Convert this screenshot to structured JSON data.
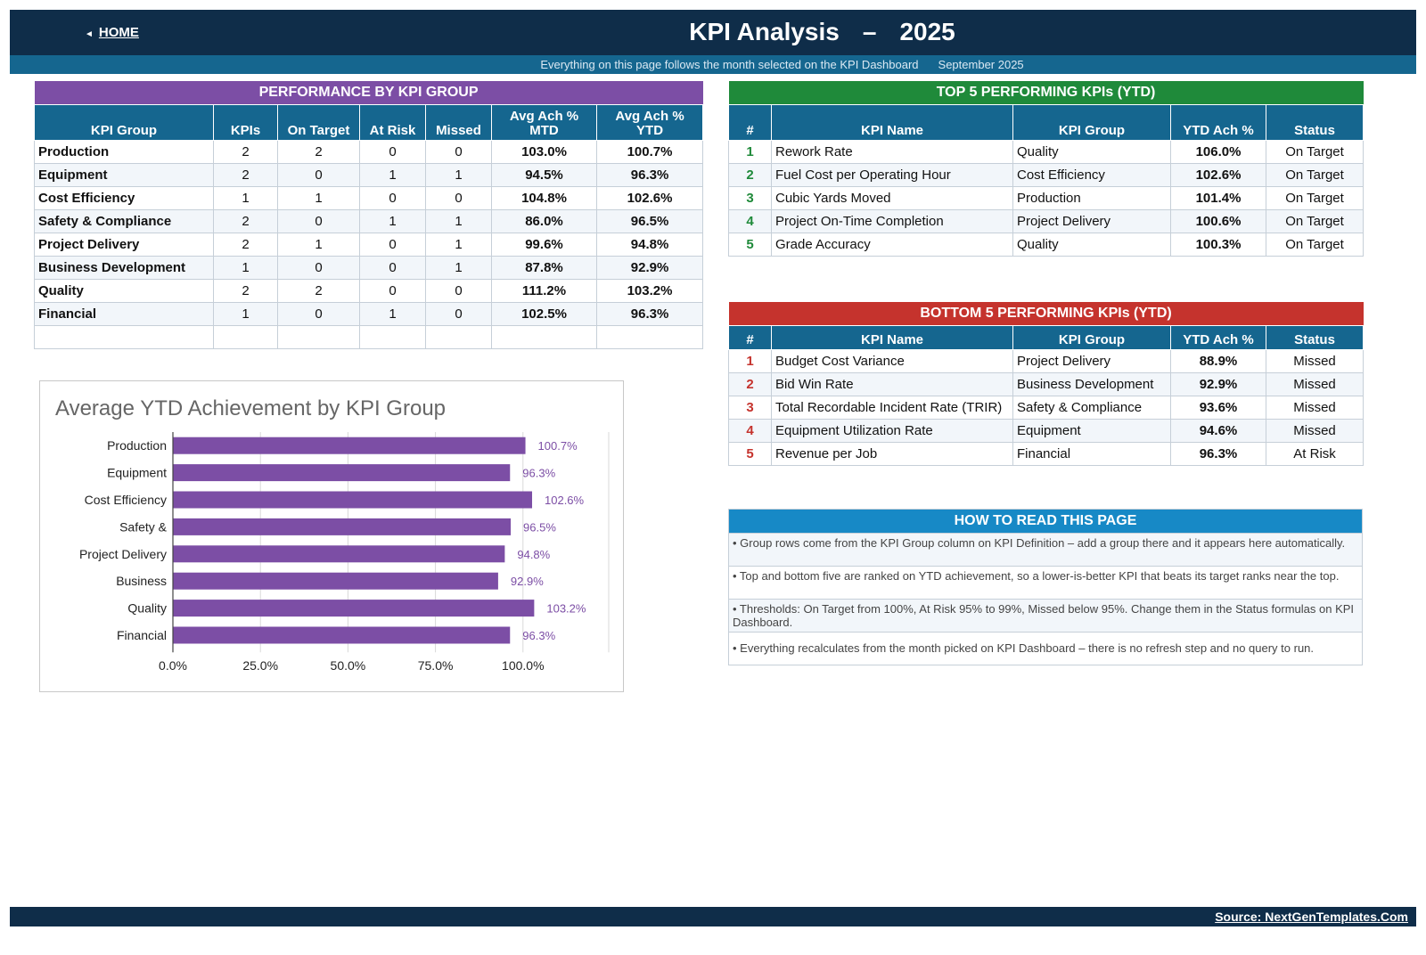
{
  "header": {
    "home_label": "HOME",
    "title": "KPI Analysis",
    "dash": "–",
    "year": "2025",
    "subtitle": "Everything on this page follows the month selected on the KPI Dashboard",
    "month": "September 2025"
  },
  "performance": {
    "title": "PERFORMANCE BY KPI GROUP",
    "columns": [
      "KPI Group",
      "KPIs",
      "On Target",
      "At Risk",
      "Missed",
      "Avg Ach %\nMTD",
      "Avg Ach %\nYTD"
    ],
    "rows": [
      [
        "Production",
        "2",
        "2",
        "0",
        "0",
        "103.0%",
        "100.7%"
      ],
      [
        "Equipment",
        "2",
        "0",
        "1",
        "1",
        "94.5%",
        "96.3%"
      ],
      [
        "Cost Efficiency",
        "1",
        "1",
        "0",
        "0",
        "104.8%",
        "102.6%"
      ],
      [
        "Safety & Compliance",
        "2",
        "0",
        "1",
        "1",
        "86.0%",
        "96.5%"
      ],
      [
        "Project Delivery",
        "2",
        "1",
        "0",
        "1",
        "99.6%",
        "94.8%"
      ],
      [
        "Business Development",
        "1",
        "0",
        "0",
        "1",
        "87.8%",
        "92.9%"
      ],
      [
        "Quality",
        "2",
        "2",
        "0",
        "0",
        "111.2%",
        "103.2%"
      ],
      [
        "Financial",
        "1",
        "0",
        "1",
        "0",
        "102.5%",
        "96.3%"
      ],
      [
        "",
        "",
        "",
        "",
        "",
        "",
        ""
      ]
    ]
  },
  "top5": {
    "title": "TOP 5 PERFORMING KPIs  (YTD)",
    "columns": [
      "#",
      "KPI Name",
      "KPI Group",
      "YTD Ach %",
      "Status"
    ],
    "rows": [
      [
        "1",
        "Rework Rate",
        "Quality",
        "106.0%",
        "On Target"
      ],
      [
        "2",
        "Fuel Cost per Operating Hour",
        "Cost Efficiency",
        "102.6%",
        "On Target"
      ],
      [
        "3",
        "Cubic Yards Moved",
        "Production",
        "101.4%",
        "On Target"
      ],
      [
        "4",
        "Project On-Time Completion",
        "Project Delivery",
        "100.6%",
        "On Target"
      ],
      [
        "5",
        "Grade Accuracy",
        "Quality",
        "100.3%",
        "On Target"
      ]
    ]
  },
  "bottom5": {
    "title": "BOTTOM 5 PERFORMING KPIs  (YTD)",
    "columns": [
      "#",
      "KPI Name",
      "KPI Group",
      "YTD Ach %",
      "Status"
    ],
    "rows": [
      [
        "1",
        "Budget Cost Variance",
        "Project Delivery",
        "88.9%",
        "Missed"
      ],
      [
        "2",
        "Bid Win Rate",
        "Business Development",
        "92.9%",
        "Missed"
      ],
      [
        "3",
        "Total Recordable Incident Rate (TRIR)",
        "Safety & Compliance",
        "93.6%",
        "Missed"
      ],
      [
        "4",
        "Equipment Utilization Rate",
        "Equipment",
        "94.6%",
        "Missed"
      ],
      [
        "5",
        "Revenue per Job",
        "Financial",
        "96.3%",
        "At Risk"
      ]
    ]
  },
  "howto": {
    "title": "HOW TO READ THIS PAGE",
    "tips": [
      "•  Group rows come from the KPI Group column on KPI Definition – add a group there and it appears here automatically.",
      "•  Top and bottom five are ranked on YTD achievement, so a lower-is-better KPI that beats its target ranks near the top.",
      "•  Thresholds: On Target from 100%, At Risk 95% to 99%, Missed below 95%. Change them in the Status formulas on KPI Dashboard.",
      "•  Everything recalculates from the month picked on KPI Dashboard – there is no refresh step and no query to run."
    ]
  },
  "chart_data": {
    "type": "bar",
    "orientation": "horizontal",
    "title": "Average YTD Achievement by KPI Group",
    "categories": [
      "Production",
      "Equipment",
      "Cost Efficiency",
      "Safety &",
      "Project Delivery",
      "Business",
      "Quality",
      "Financial"
    ],
    "values": [
      100.7,
      96.3,
      102.6,
      96.5,
      94.8,
      92.9,
      103.2,
      96.3
    ],
    "data_labels": [
      "100.7%",
      "96.3%",
      "102.6%",
      "96.5%",
      "94.8%",
      "92.9%",
      "103.2%",
      "96.3%"
    ],
    "xticks": [
      "0.0%",
      "25.0%",
      "50.0%",
      "75.0%",
      "100.0%"
    ],
    "xtick_values": [
      0,
      25,
      50,
      75,
      100
    ],
    "xlim": [
      0,
      125
    ],
    "grid": true,
    "bar_color": "#7c4ea5"
  },
  "footer": {
    "source": "Source: NextGenTemplates.Com"
  },
  "colors": {
    "navy": "#0f2d49",
    "teal_header": "#15668f",
    "purple": "#7c4ea5",
    "green": "#1f8a3a",
    "red": "#c5332d",
    "blue": "#1789c6"
  }
}
